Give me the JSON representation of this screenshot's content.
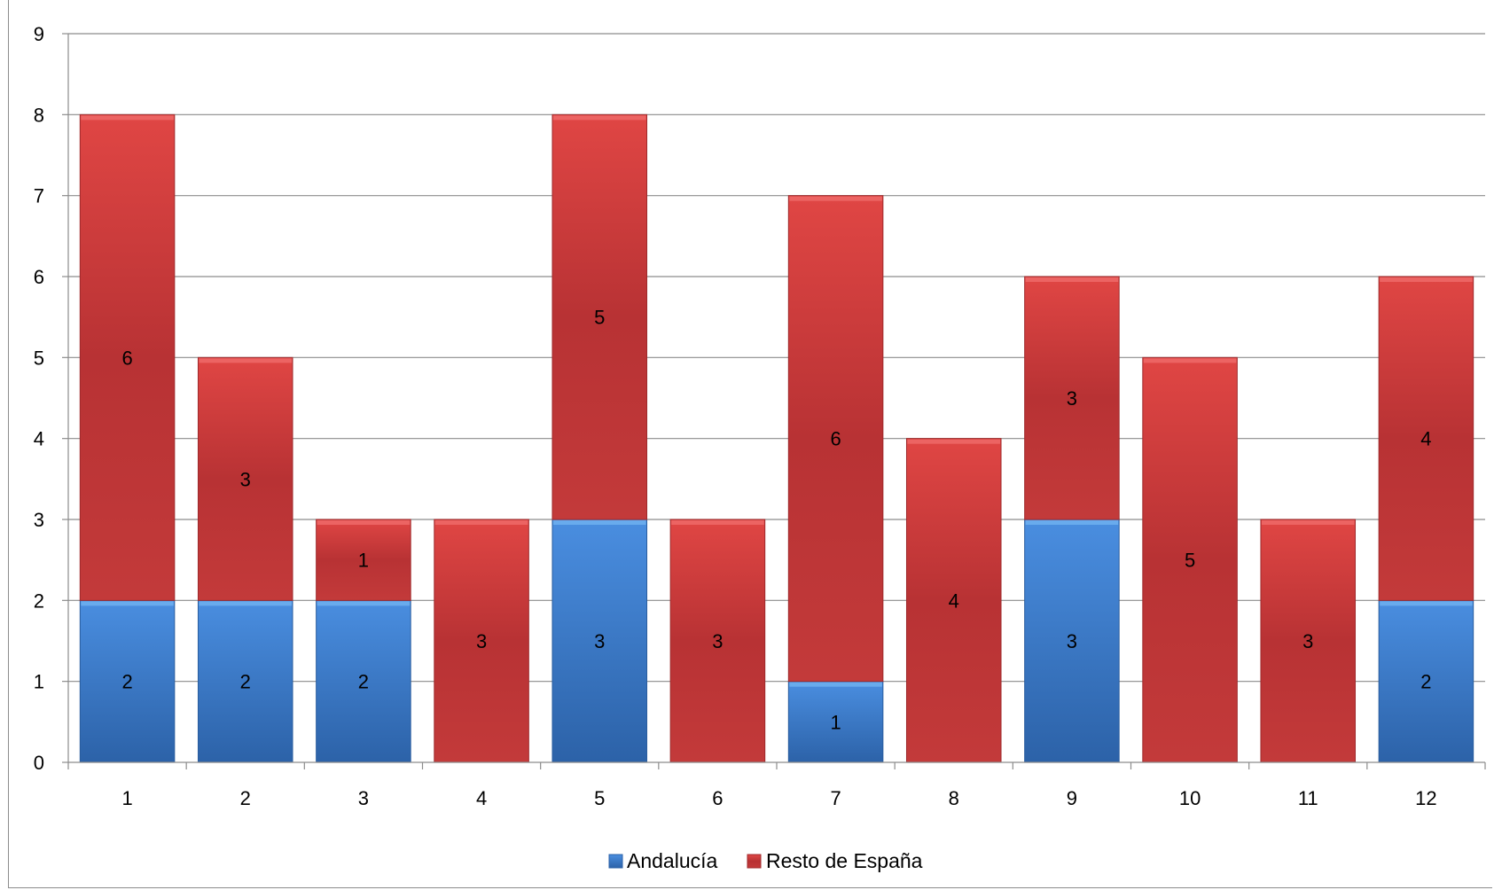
{
  "chart_data": {
    "type": "bar",
    "stacked": true,
    "categories": [
      "1",
      "2",
      "3",
      "4",
      "5",
      "6",
      "7",
      "8",
      "9",
      "10",
      "11",
      "12"
    ],
    "series": [
      {
        "name": "Andalucía",
        "values": [
          2,
          2,
          2,
          0,
          3,
          0,
          1,
          0,
          3,
          0,
          0,
          2
        ],
        "color": "#3f7fd1"
      },
      {
        "name": "Resto de España",
        "values": [
          6,
          3,
          1,
          3,
          5,
          3,
          6,
          4,
          3,
          5,
          3,
          4
        ],
        "color": "#c9383a"
      }
    ],
    "y_ticks": [
      "0",
      "1",
      "2",
      "3",
      "4",
      "5",
      "6",
      "7",
      "8",
      "9"
    ],
    "ylim": [
      0,
      9
    ],
    "grid": true,
    "legend_position": "bottom"
  }
}
